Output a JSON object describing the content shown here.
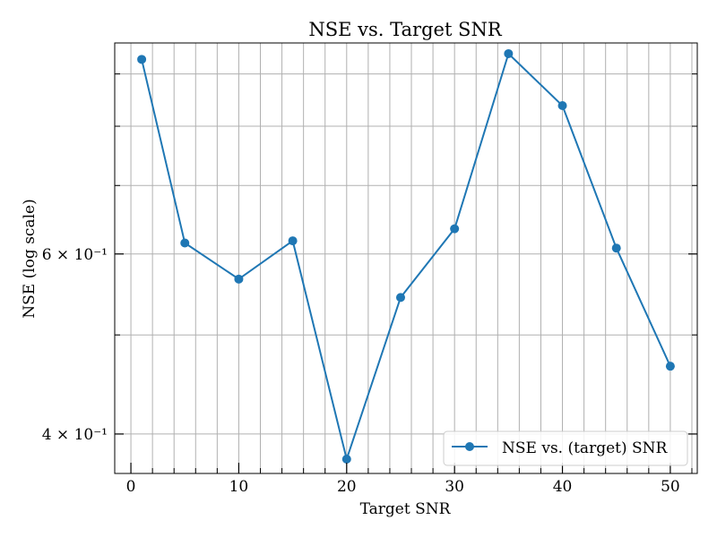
{
  "chart_data": {
    "type": "line",
    "title": "NSE vs. Target SNR",
    "xlabel": "Target SNR",
    "ylabel": "NSE (log scale)",
    "x_ticks": [
      0,
      10,
      20,
      30,
      40,
      50
    ],
    "x_tick_labels": [
      "0",
      "10",
      "20",
      "30",
      "40",
      "50"
    ],
    "x_minor_ticks": [
      2,
      4,
      6,
      8,
      12,
      14,
      16,
      18,
      22,
      24,
      26,
      28,
      32,
      34,
      36,
      38,
      42,
      44,
      46,
      48,
      52
    ],
    "y_scale": "log",
    "y_major_ticks": [
      0.4,
      0.6
    ],
    "y_minor_ticks": [
      0.5,
      0.7,
      0.8,
      0.9
    ],
    "y_major_labels": [
      "4 × 10⁻¹",
      "6 × 10⁻¹"
    ],
    "xlim": [
      -1.5,
      52.5
    ],
    "ylim": [
      0.366,
      0.965
    ],
    "grid": true,
    "legend": {
      "position": "bottom-right",
      "entries": [
        "NSE vs. (target) SNR"
      ]
    },
    "colors": {
      "series": "#1f77b4",
      "grid": "#b0b0b0",
      "axes": "#000000"
    },
    "series": [
      {
        "name": "NSE vs. (target) SNR",
        "x": [
          1,
          5,
          10,
          15,
          20,
          25,
          30,
          35,
          40,
          45,
          50
        ],
        "y": [
          0.93,
          0.615,
          0.567,
          0.618,
          0.378,
          0.544,
          0.635,
          0.942,
          0.838,
          0.608,
          0.466
        ]
      }
    ]
  }
}
